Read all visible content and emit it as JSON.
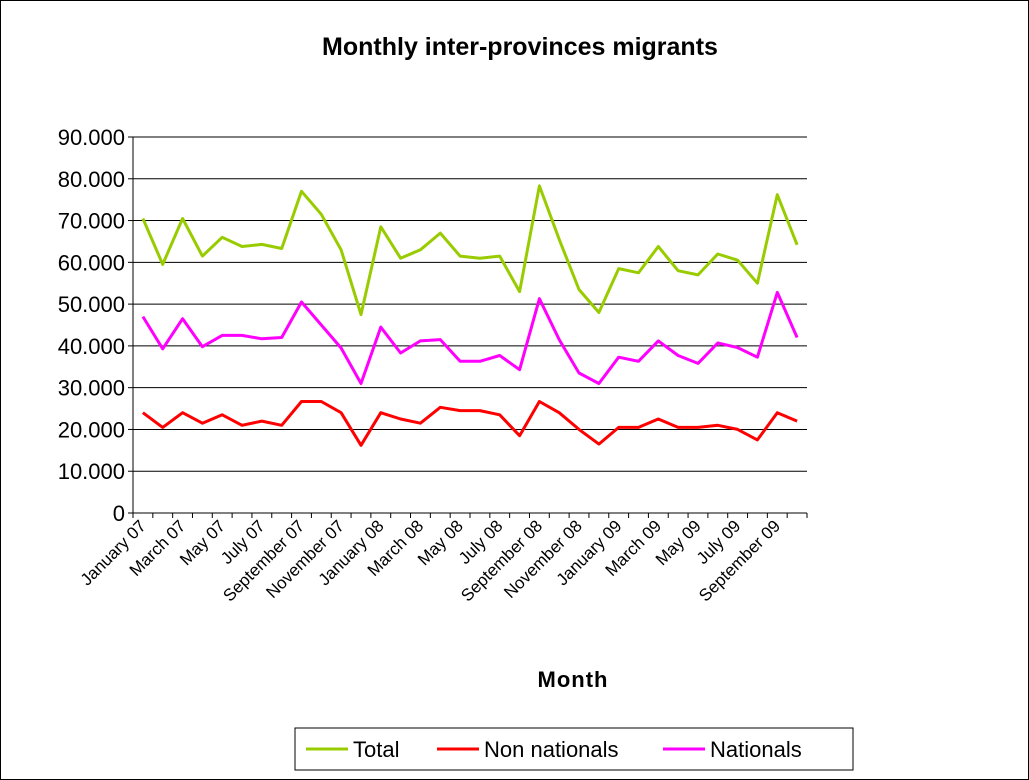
{
  "chart_data": {
    "type": "line",
    "title": "Monthly inter-provinces migrants",
    "xlabel": "Month",
    "ylabel": "",
    "ylim": [
      0,
      90000
    ],
    "y_ticks": [
      {
        "value": 0,
        "label": "0"
      },
      {
        "value": 10000,
        "label": "10.000"
      },
      {
        "value": 20000,
        "label": "20.000"
      },
      {
        "value": 30000,
        "label": "30.000"
      },
      {
        "value": 40000,
        "label": "40.000"
      },
      {
        "value": 50000,
        "label": "50.000"
      },
      {
        "value": 60000,
        "label": "60.000"
      },
      {
        "value": 70000,
        "label": "70.000"
      },
      {
        "value": 80000,
        "label": "80.000"
      },
      {
        "value": 90000,
        "label": "90.000"
      }
    ],
    "grid": "horizontal",
    "legend_position": "bottom",
    "x": [
      "January 07",
      "February 07",
      "March 07",
      "April 07",
      "May 07",
      "June 07",
      "July 07",
      "August 07",
      "September 07",
      "October 07",
      "November 07",
      "December 07",
      "January 08",
      "February 08",
      "March 08",
      "April 08",
      "May 08",
      "June 08",
      "July 08",
      "August 08",
      "September 08",
      "October 08",
      "November 08",
      "December 08",
      "January 09",
      "February 09",
      "March 09",
      "April 09",
      "May 09",
      "June 09",
      "July 09",
      "August 09",
      "September 09",
      "October 09"
    ],
    "x_tick_labels": [
      "January 07",
      "March 07",
      "May 07",
      "July 07",
      "September 07",
      "November 07",
      "January 08",
      "March 08",
      "May 08",
      "July 08",
      "September 08",
      "November 08",
      "January 09",
      "March 09",
      "May 09",
      "July 09",
      "September 09"
    ],
    "series": [
      {
        "name": "Total",
        "color": "#99cc00",
        "values": [
          70500,
          59500,
          70500,
          61500,
          66000,
          63800,
          64300,
          63300,
          77000,
          71500,
          63000,
          47500,
          68500,
          61000,
          63000,
          67000,
          61500,
          61000,
          61500,
          53000,
          78300,
          65500,
          53500,
          48000,
          58500,
          57500,
          63800,
          58000,
          57000,
          62000,
          60500,
          55000,
          76200,
          64200
        ]
      },
      {
        "name": "Non nationals",
        "color": "#ff0000",
        "values": [
          24000,
          20500,
          24000,
          21500,
          23500,
          21000,
          22000,
          21000,
          26700,
          26700,
          24000,
          16200,
          24000,
          22500,
          21500,
          25300,
          24500,
          24500,
          23500,
          18500,
          26700,
          24000,
          20000,
          16500,
          20500,
          20500,
          22500,
          20500,
          20500,
          21000,
          20000,
          17500,
          24000,
          22000
        ]
      },
      {
        "name": "Nationals",
        "color": "#ff00ff",
        "values": [
          47000,
          39300,
          46500,
          39800,
          42500,
          42500,
          41700,
          42000,
          50500,
          45000,
          39500,
          31000,
          44500,
          38300,
          41200,
          41500,
          36300,
          36300,
          37700,
          34300,
          51300,
          41500,
          33500,
          31000,
          37300,
          36300,
          41200,
          37700,
          35800,
          40700,
          39600,
          37300,
          52800,
          42000
        ]
      }
    ]
  }
}
